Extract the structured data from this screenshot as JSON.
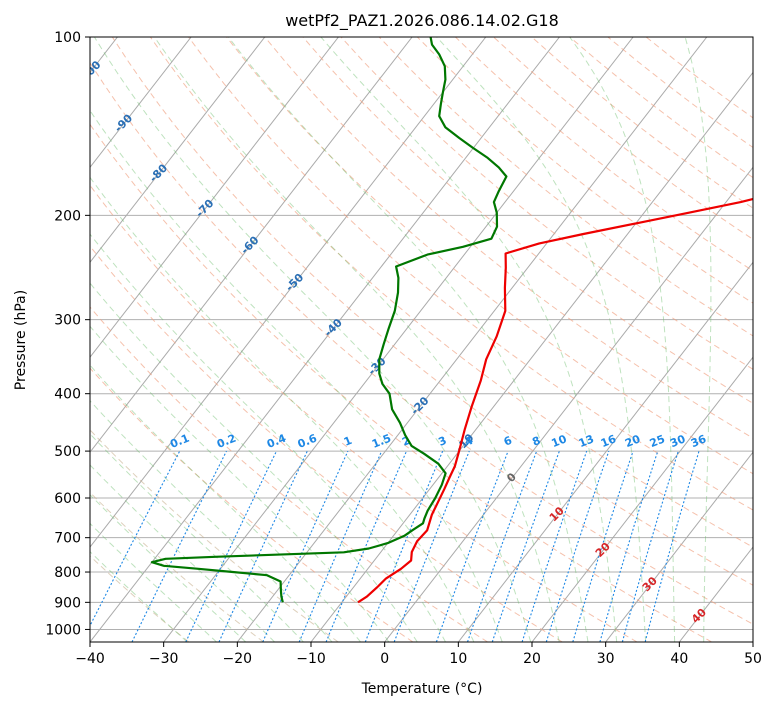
{
  "chart_data": {
    "type": "line",
    "title": "wetPf2_PAZ1.2026.086.14.02.G18",
    "xlabel": "Temperature (°C)",
    "ylabel": "Pressure (hPa)",
    "xlim": [
      -40,
      50
    ],
    "ylim": [
      1050,
      100
    ],
    "x_ticks": [
      -40,
      -30,
      -20,
      -10,
      0,
      10,
      20,
      30,
      40,
      50
    ],
    "x_tick_labels": [
      "−40",
      "−30",
      "−20",
      "−10",
      "0",
      "10",
      "20",
      "30",
      "40",
      "50"
    ],
    "y_ticks": [
      100,
      200,
      300,
      400,
      500,
      600,
      700,
      800,
      900,
      1000
    ],
    "y_tick_labels": [
      "100",
      "200",
      "300",
      "400",
      "500",
      "600",
      "700",
      "800",
      "900",
      "1000"
    ],
    "isotherm_labels": [
      {
        "text": "-100",
        "T": -100,
        "p": 115
      },
      {
        "text": "-90",
        "T": -90,
        "p": 140
      },
      {
        "text": "-80",
        "T": -80,
        "p": 170
      },
      {
        "text": "-70",
        "T": -70,
        "p": 195
      },
      {
        "text": "-60",
        "T": -60,
        "p": 225
      },
      {
        "text": "-50",
        "T": -50,
        "p": 260
      },
      {
        "text": "-40",
        "T": -40,
        "p": 310
      },
      {
        "text": "-30",
        "T": -30,
        "p": 360
      },
      {
        "text": "-20",
        "T": -20,
        "p": 420
      },
      {
        "text": "-10",
        "T": -10,
        "p": 485
      },
      {
        "text": "0",
        "T": 0,
        "p": 555
      },
      {
        "text": "10",
        "T": 10,
        "p": 640
      },
      {
        "text": "20",
        "T": 20,
        "p": 735
      },
      {
        "text": "30",
        "T": 30,
        "p": 840
      },
      {
        "text": "40",
        "T": 40,
        "p": 950
      }
    ],
    "mixing_ratio_labels": [
      "0.1",
      "0.2",
      "0.4",
      "0.6",
      "1",
      "1.5",
      "2",
      "3",
      "4",
      "6",
      "8",
      "10",
      "13",
      "16",
      "20",
      "25",
      "30",
      "36"
    ],
    "series": [
      {
        "name": "Temperature",
        "color": "#ee0000",
        "points": [
          [
            -7.8,
            900
          ],
          [
            -7.2,
            880
          ],
          [
            -6.8,
            850
          ],
          [
            -6.5,
            820
          ],
          [
            -5.5,
            790
          ],
          [
            -5.0,
            765
          ],
          [
            -5.8,
            740
          ],
          [
            -6.2,
            710
          ],
          [
            -6.0,
            680
          ],
          [
            -6.5,
            660
          ],
          [
            -7.0,
            640
          ],
          [
            -7.5,
            610
          ],
          [
            -8.0,
            580
          ],
          [
            -8.5,
            555
          ],
          [
            -9.0,
            530
          ],
          [
            -10.0,
            500
          ],
          [
            -11.5,
            460
          ],
          [
            -13.0,
            420
          ],
          [
            -14.5,
            380
          ],
          [
            -16.0,
            350
          ],
          [
            -17.0,
            320
          ],
          [
            -18.5,
            290
          ],
          [
            -21.0,
            265
          ],
          [
            -23.0,
            245
          ],
          [
            -24.5,
            232
          ],
          [
            -21.0,
            223
          ],
          [
            -16.0,
            215
          ],
          [
            -9.0,
            205
          ],
          [
            -4.0,
            198
          ],
          [
            2.0,
            190
          ],
          [
            8.0,
            180
          ],
          [
            14.0,
            167
          ],
          [
            22.0,
            155
          ],
          [
            28.0,
            145
          ],
          [
            34.0,
            132
          ],
          [
            39.0,
            121
          ],
          [
            44.0,
            113
          ],
          [
            48.0,
            107
          ],
          [
            52.0,
            103
          ],
          [
            55.0,
            100
          ]
        ]
      },
      {
        "name": "Dewpoint",
        "color": "#007700",
        "points": [
          [
            -18.0,
            900
          ],
          [
            -18.8,
            880
          ],
          [
            -19.5,
            860
          ],
          [
            -20.5,
            830
          ],
          [
            -23.0,
            810
          ],
          [
            -28.0,
            800
          ],
          [
            -33.0,
            790
          ],
          [
            -38.0,
            781
          ],
          [
            -40.0,
            770
          ],
          [
            -38.5,
            760
          ],
          [
            -32.0,
            754
          ],
          [
            -24.0,
            748
          ],
          [
            -15.0,
            741
          ],
          [
            -12.0,
            730
          ],
          [
            -10.0,
            715
          ],
          [
            -8.5,
            695
          ],
          [
            -8.0,
            680
          ],
          [
            -7.3,
            662
          ],
          [
            -7.6,
            650
          ],
          [
            -8.0,
            630
          ],
          [
            -8.3,
            600
          ],
          [
            -8.8,
            570
          ],
          [
            -9.5,
            545
          ],
          [
            -11.5,
            525
          ],
          [
            -14.5,
            505
          ],
          [
            -17.0,
            490
          ],
          [
            -19.0,
            470
          ],
          [
            -21.0,
            448
          ],
          [
            -23.5,
            425
          ],
          [
            -25.5,
            400
          ],
          [
            -27.5,
            385
          ],
          [
            -29.0,
            370
          ],
          [
            -30.5,
            350
          ],
          [
            -31.5,
            330
          ],
          [
            -32.5,
            310
          ],
          [
            -33.5,
            290
          ],
          [
            -35.0,
            270
          ],
          [
            -36.5,
            255
          ],
          [
            -38.0,
            244
          ],
          [
            -35.0,
            233
          ],
          [
            -31.0,
            226
          ],
          [
            -28.0,
            219
          ],
          [
            -28.5,
            209
          ],
          [
            -30.0,
            198
          ],
          [
            -31.5,
            190
          ],
          [
            -32.0,
            182
          ],
          [
            -32.5,
            172
          ],
          [
            -34.5,
            166
          ],
          [
            -37.0,
            160
          ],
          [
            -40.0,
            154
          ],
          [
            -43.0,
            148
          ],
          [
            -46.0,
            142
          ],
          [
            -48.0,
            136
          ],
          [
            -49.0,
            130
          ],
          [
            -50.0,
            124
          ],
          [
            -51.0,
            118
          ],
          [
            -52.5,
            112
          ],
          [
            -54.5,
            107
          ],
          [
            -56.5,
            103
          ],
          [
            -57.5,
            100
          ]
        ]
      }
    ]
  }
}
